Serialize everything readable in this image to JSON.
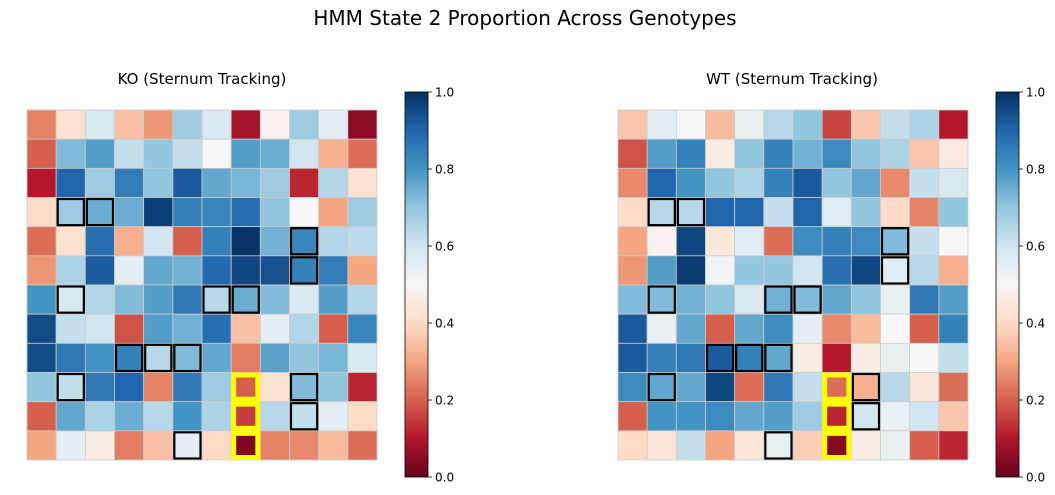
{
  "figure": {
    "suptitle": "HMM State 2 Proportion Across Genotypes"
  },
  "colormap": {
    "name": "RdBu",
    "stops": [
      "#67001f",
      "#b2182b",
      "#d6604d",
      "#f4a582",
      "#fddbc7",
      "#f7f7f7",
      "#d1e5f0",
      "#92c5de",
      "#4393c3",
      "#2166ac",
      "#053061"
    ]
  },
  "colors": {
    "highlight_box": "#ffff00",
    "outline_box": "#000000",
    "grid_line": "#cccccc"
  },
  "chart_data": [
    {
      "type": "heatmap",
      "title": "KO (Sternum Tracking)",
      "rows": 12,
      "cols": 12,
      "vmin": 0,
      "vmax": 1,
      "colorbar_ticks": [
        "0.0",
        "0.2",
        "0.4",
        "0.6",
        "0.8",
        "1.0"
      ],
      "values": [
        [
          0.25,
          0.42,
          0.58,
          0.35,
          0.28,
          0.68,
          0.58,
          0.08,
          0.48,
          0.68,
          0.55,
          0.05
        ],
        [
          0.2,
          0.72,
          0.78,
          0.62,
          0.7,
          0.62,
          0.5,
          0.78,
          0.75,
          0.6,
          0.32,
          0.22
        ],
        [
          0.1,
          0.9,
          0.68,
          0.85,
          0.7,
          0.92,
          0.76,
          0.73,
          0.68,
          0.12,
          0.65,
          0.42
        ],
        [
          0.4,
          0.68,
          0.75,
          0.75,
          0.97,
          0.84,
          0.83,
          0.88,
          0.7,
          0.5,
          0.3,
          0.68
        ],
        [
          0.22,
          0.42,
          0.88,
          0.32,
          0.6,
          0.2,
          0.84,
          0.99,
          0.74,
          0.83,
          0.65,
          0.63
        ],
        [
          0.28,
          0.66,
          0.92,
          0.55,
          0.76,
          0.74,
          0.89,
          0.96,
          0.94,
          0.84,
          0.85,
          0.3
        ],
        [
          0.8,
          0.58,
          0.65,
          0.72,
          0.78,
          0.86,
          0.64,
          0.75,
          0.72,
          0.58,
          0.78,
          0.65
        ],
        [
          0.95,
          0.62,
          0.6,
          0.18,
          0.78,
          0.74,
          0.88,
          0.35,
          0.55,
          0.65,
          0.2,
          0.83
        ],
        [
          0.95,
          0.86,
          0.8,
          0.84,
          0.64,
          0.72,
          0.76,
          0.24,
          0.77,
          0.7,
          0.73,
          0.58
        ],
        [
          0.7,
          0.62,
          0.86,
          0.9,
          0.25,
          0.86,
          0.68,
          0.2,
          0.42,
          0.72,
          0.7,
          0.12
        ],
        [
          0.2,
          0.76,
          0.66,
          0.75,
          0.64,
          0.8,
          0.66,
          0.15,
          0.64,
          0.62,
          0.55,
          0.4
        ],
        [
          0.3,
          0.55,
          0.46,
          0.24,
          0.35,
          0.55,
          0.4,
          0.03,
          0.25,
          0.26,
          0.34,
          0.22
        ]
      ],
      "outlined_cells": [
        [
          3,
          1
        ],
        [
          3,
          2
        ],
        [
          4,
          9
        ],
        [
          5,
          9
        ],
        [
          6,
          1
        ],
        [
          6,
          6
        ],
        [
          6,
          7
        ],
        [
          8,
          3
        ],
        [
          8,
          4
        ],
        [
          8,
          5
        ],
        [
          9,
          1
        ],
        [
          9,
          9
        ],
        [
          10,
          9
        ],
        [
          11,
          5
        ]
      ],
      "highlighted_cells": [
        [
          9,
          7
        ],
        [
          10,
          7
        ],
        [
          11,
          7
        ]
      ]
    },
    {
      "type": "heatmap",
      "title": "WT (Sternum Tracking)",
      "rows": 12,
      "cols": 12,
      "vmin": 0,
      "vmax": 1,
      "colorbar_ticks": [
        "0.0",
        "0.2",
        "0.4",
        "0.6",
        "0.8",
        "1.0"
      ],
      "values": [
        [
          0.36,
          0.55,
          0.5,
          0.34,
          0.54,
          0.64,
          0.7,
          0.16,
          0.36,
          0.62,
          0.66,
          0.1
        ],
        [
          0.18,
          0.78,
          0.84,
          0.46,
          0.7,
          0.84,
          0.74,
          0.82,
          0.7,
          0.66,
          0.36,
          0.45
        ],
        [
          0.26,
          0.9,
          0.8,
          0.7,
          0.66,
          0.84,
          0.92,
          0.7,
          0.76,
          0.26,
          0.62,
          0.58
        ],
        [
          0.4,
          0.64,
          0.64,
          0.9,
          0.9,
          0.62,
          0.9,
          0.56,
          0.7,
          0.4,
          0.25,
          0.7
        ],
        [
          0.3,
          0.48,
          0.96,
          0.44,
          0.56,
          0.22,
          0.82,
          0.84,
          0.82,
          0.72,
          0.62,
          0.5
        ],
        [
          0.28,
          0.78,
          0.98,
          0.52,
          0.7,
          0.7,
          0.6,
          0.88,
          0.96,
          0.56,
          0.64,
          0.32
        ],
        [
          0.72,
          0.72,
          0.74,
          0.7,
          0.58,
          0.74,
          0.72,
          0.76,
          0.7,
          0.54,
          0.86,
          0.78
        ],
        [
          0.92,
          0.54,
          0.76,
          0.2,
          0.76,
          0.82,
          0.55,
          0.26,
          0.34,
          0.5,
          0.2,
          0.84
        ],
        [
          0.92,
          0.84,
          0.86,
          0.92,
          0.84,
          0.76,
          0.46,
          0.1,
          0.46,
          0.54,
          0.5,
          0.62
        ],
        [
          0.82,
          0.76,
          0.76,
          0.96,
          0.22,
          0.86,
          0.62,
          0.22,
          0.32,
          0.64,
          0.44,
          0.22
        ],
        [
          0.2,
          0.8,
          0.8,
          0.82,
          0.76,
          0.78,
          0.68,
          0.12,
          0.6,
          0.54,
          0.6,
          0.36
        ],
        [
          0.4,
          0.44,
          0.62,
          0.3,
          0.44,
          0.54,
          0.38,
          0.04,
          0.46,
          0.54,
          0.2,
          0.12
        ]
      ],
      "outlined_cells": [
        [
          3,
          1
        ],
        [
          3,
          2
        ],
        [
          4,
          9
        ],
        [
          5,
          9
        ],
        [
          6,
          1
        ],
        [
          6,
          5
        ],
        [
          6,
          6
        ],
        [
          8,
          3
        ],
        [
          8,
          4
        ],
        [
          8,
          5
        ],
        [
          9,
          1
        ],
        [
          9,
          8
        ],
        [
          10,
          8
        ],
        [
          11,
          5
        ]
      ],
      "highlighted_cells": [
        [
          9,
          7
        ],
        [
          10,
          7
        ],
        [
          11,
          7
        ]
      ]
    }
  ]
}
